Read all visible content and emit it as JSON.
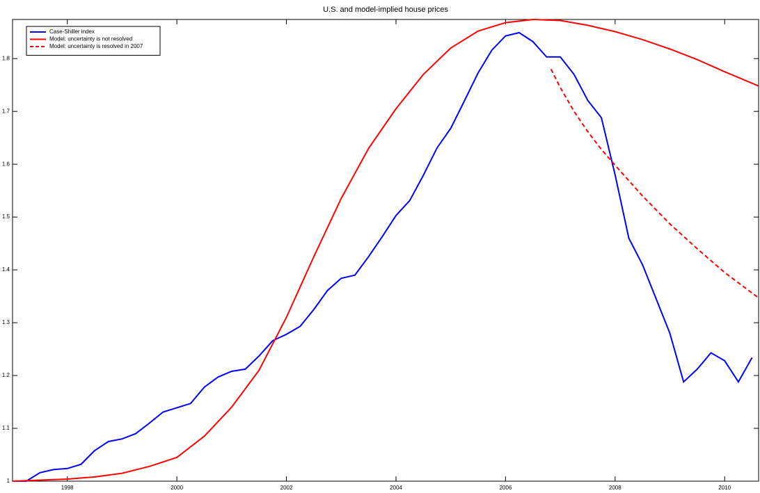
{
  "chart_data": {
    "type": "line",
    "title": "U.S. and model-implied house prices",
    "xlim": [
      1997,
      2010.62
    ],
    "ylim": [
      1,
      1.874
    ],
    "xticks": [
      1998,
      2000,
      2002,
      2004,
      2006,
      2008,
      2010
    ],
    "yticks": [
      1,
      1.1,
      1.2,
      1.3,
      1.4,
      1.5,
      1.6,
      1.7,
      1.8
    ],
    "legend": "upper-left",
    "series": [
      {
        "name": "Case-Shiller index",
        "color": "#0000ff",
        "linestyle": "solid",
        "x": [
          1997,
          1997.25,
          1997.5,
          1997.75,
          1998,
          1998.25,
          1998.5,
          1998.75,
          1999,
          1999.25,
          1999.5,
          1999.75,
          2000,
          2000.25,
          2000.5,
          2000.75,
          2001,
          2001.25,
          2001.5,
          2001.75,
          2002,
          2002.25,
          2002.5,
          2002.75,
          2003,
          2003.25,
          2003.5,
          2003.75,
          2004,
          2004.25,
          2004.5,
          2004.75,
          2005,
          2005.25,
          2005.5,
          2005.75,
          2006,
          2006.25,
          2006.5,
          2006.75,
          2007,
          2007.25,
          2007.5,
          2007.75,
          2008,
          2008.25,
          2008.5,
          2008.75,
          2009,
          2009.25,
          2009.5,
          2009.75,
          2010,
          2010.25,
          2010.5
        ],
        "values": [
          1.0,
          1.0,
          1.016,
          1.022,
          1.024,
          1.032,
          1.058,
          1.075,
          1.08,
          1.09,
          1.11,
          1.131,
          1.139,
          1.147,
          1.178,
          1.197,
          1.208,
          1.212,
          1.237,
          1.266,
          1.278,
          1.293,
          1.325,
          1.361,
          1.384,
          1.39,
          1.425,
          1.463,
          1.503,
          1.531,
          1.579,
          1.631,
          1.668,
          1.72,
          1.773,
          1.816,
          1.843,
          1.849,
          1.832,
          1.803,
          1.803,
          1.77,
          1.721,
          1.688,
          1.58,
          1.46,
          1.41,
          1.345,
          1.28,
          1.188,
          1.212,
          1.243,
          1.228,
          1.188,
          1.234
        ]
      },
      {
        "name": "Model: uncertainty is not resolved",
        "color": "#ff0000",
        "linestyle": "solid",
        "x": [
          1997,
          1998,
          1998.5,
          1999,
          1999.5,
          2000,
          2000.5,
          2001,
          2001.5,
          2002,
          2002.5,
          2003,
          2003.5,
          2004,
          2004.5,
          2005,
          2005.5,
          2006,
          2006.5,
          2007,
          2007.5,
          2008,
          2008.5,
          2009,
          2009.5,
          2010,
          2010.62
        ],
        "values": [
          1.0,
          1.004,
          1.008,
          1.015,
          1.028,
          1.045,
          1.085,
          1.14,
          1.21,
          1.31,
          1.425,
          1.535,
          1.63,
          1.705,
          1.77,
          1.82,
          1.852,
          1.868,
          1.874,
          1.872,
          1.863,
          1.851,
          1.836,
          1.818,
          1.798,
          1.775,
          1.748
        ]
      },
      {
        "name": "Model: uncertainty is resolved in 2007",
        "color": "#ff0000",
        "linestyle": "dashed",
        "x": [
          2006.83,
          2007,
          2007.25,
          2007.5,
          2007.75,
          2008,
          2008.5,
          2009,
          2009.5,
          2010,
          2010.62
        ],
        "values": [
          1.78,
          1.745,
          1.7,
          1.662,
          1.628,
          1.598,
          1.54,
          1.487,
          1.44,
          1.395,
          1.347
        ]
      }
    ]
  }
}
